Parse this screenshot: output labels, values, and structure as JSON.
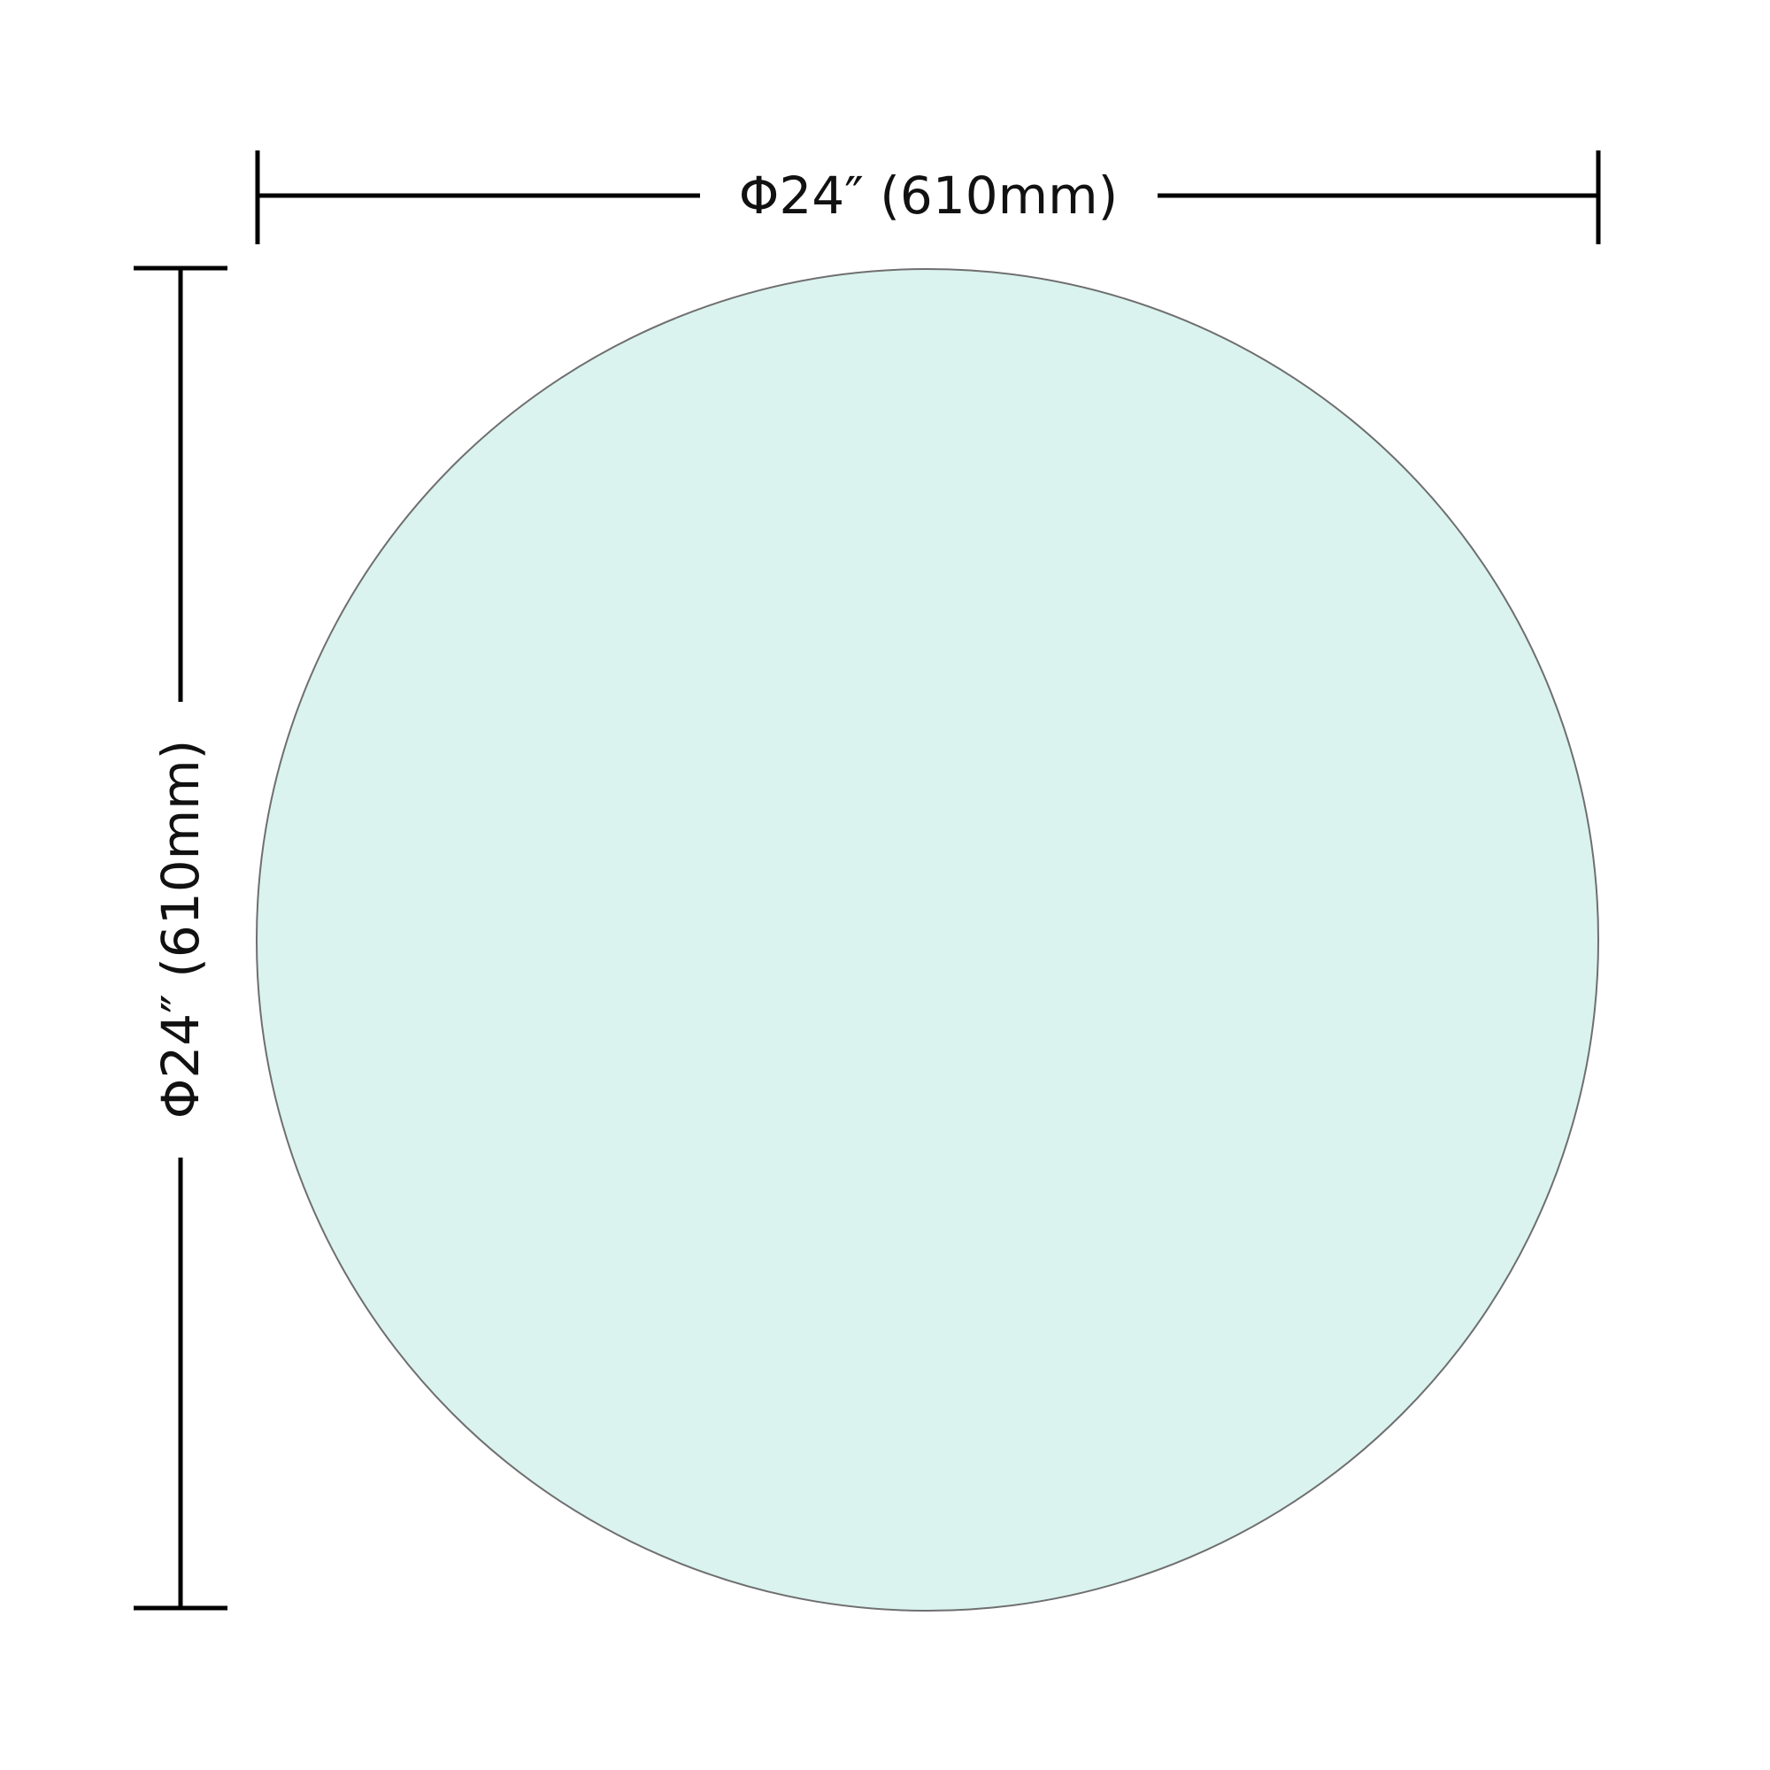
{
  "drawing": {
    "shape": "circle",
    "fill_color": "#daf3ef",
    "outline_color": "#6f6f6f",
    "dimension_color": "#000000"
  },
  "dimensions": {
    "horizontal_label": "Φ24″ (610mm)",
    "vertical_label": "Φ24″ (610mm)"
  }
}
